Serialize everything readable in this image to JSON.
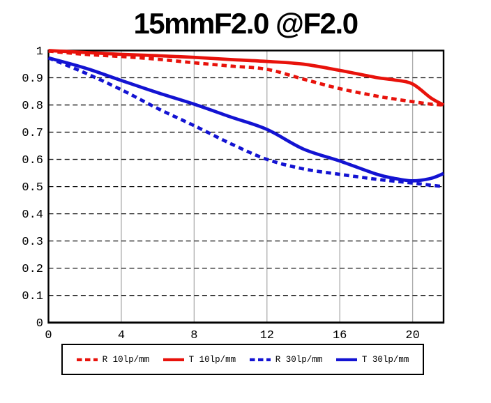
{
  "title": "15mmF2.0 @F2.0",
  "chart_data": {
    "type": "line",
    "title": "15mmF2.0 @F2.0",
    "xlabel": "",
    "ylabel": "",
    "xlim": [
      0,
      21.7
    ],
    "ylim": [
      0,
      1
    ],
    "grid": true,
    "legend_position": "bottom",
    "x_ticks": [
      {
        "v": 0,
        "label": "0"
      },
      {
        "v": 4,
        "label": "4"
      },
      {
        "v": 8,
        "label": "8"
      },
      {
        "v": 12,
        "label": "12"
      },
      {
        "v": 16,
        "label": "16"
      },
      {
        "v": 20,
        "label": "20"
      }
    ],
    "y_ticks": [
      {
        "v": 0,
        "label": "0"
      },
      {
        "v": 0.1,
        "label": "0.1"
      },
      {
        "v": 0.2,
        "label": "0.2"
      },
      {
        "v": 0.3,
        "label": "0.3"
      },
      {
        "v": 0.4,
        "label": "0.4"
      },
      {
        "v": 0.5,
        "label": "0.5"
      },
      {
        "v": 0.6,
        "label": "0.6"
      },
      {
        "v": 0.7,
        "label": "0.7"
      },
      {
        "v": 0.8,
        "label": "0.8"
      },
      {
        "v": 0.9,
        "label": "0.9"
      },
      {
        "v": 1,
        "label": "1"
      }
    ],
    "v_gridlines": [
      4,
      8,
      12,
      16,
      20
    ],
    "h_gridlines": [
      0.1,
      0.2,
      0.3,
      0.4,
      0.5,
      0.6,
      0.7,
      0.8,
      0.9
    ],
    "colors": {
      "red": "#e8120b",
      "blue": "#1313d2",
      "v_grid": "#ababab",
      "h_grid": "#111111",
      "axis": "#000000"
    },
    "x": [
      0,
      2,
      4,
      6,
      8,
      10,
      12,
      14,
      16,
      18,
      19,
      20,
      21,
      21.7
    ],
    "series": [
      {
        "name": "R 10lp/mm",
        "color": "#e8120b",
        "line": "dashed",
        "values": [
          0.998,
          0.986,
          0.978,
          0.968,
          0.955,
          0.943,
          0.931,
          0.895,
          0.86,
          0.833,
          0.822,
          0.812,
          0.803,
          0.8
        ]
      },
      {
        "name": "T 10lp/mm",
        "color": "#e8120b",
        "line": "solid",
        "values": [
          1.0,
          0.993,
          0.986,
          0.981,
          0.975,
          0.967,
          0.96,
          0.95,
          0.927,
          0.901,
          0.892,
          0.877,
          0.826,
          0.8
        ]
      },
      {
        "name": "R 30lp/mm",
        "color": "#1313d2",
        "line": "dashed",
        "values": [
          0.973,
          0.918,
          0.856,
          0.787,
          0.724,
          0.658,
          0.6,
          0.565,
          0.545,
          0.527,
          0.52,
          0.513,
          0.505,
          0.5
        ]
      },
      {
        "name": "T 30lp/mm",
        "color": "#1313d2",
        "line": "solid",
        "values": [
          0.973,
          0.936,
          0.89,
          0.845,
          0.803,
          0.756,
          0.71,
          0.638,
          0.594,
          0.546,
          0.53,
          0.521,
          0.53,
          0.548
        ]
      }
    ]
  }
}
